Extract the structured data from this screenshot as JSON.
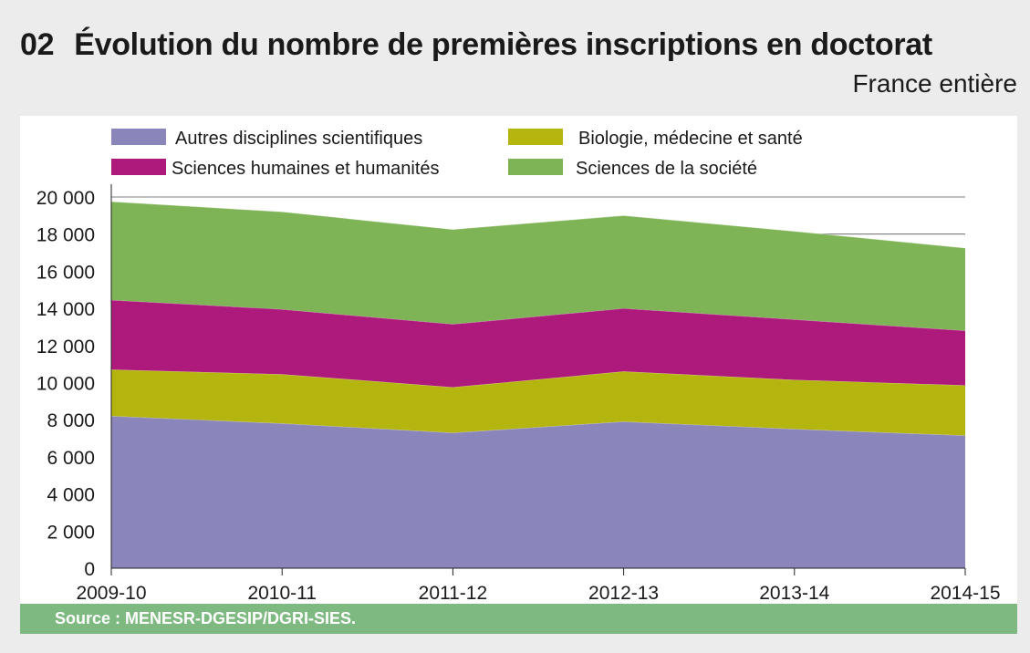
{
  "header": {
    "number": "02",
    "title": "Évolution du nombre de premières inscriptions en doctorat",
    "subtitle": "France entière"
  },
  "footer": {
    "source": "Source : MENESR-DGESIP/DGRI-SIES."
  },
  "chart_data": {
    "type": "area",
    "stacked": true,
    "categories": [
      "2009-10",
      "2010-11",
      "2011-12",
      "2012-13",
      "2013-14",
      "2014-15"
    ],
    "ylim": [
      0,
      20000
    ],
    "yticks": [
      0,
      2000,
      4000,
      6000,
      8000,
      10000,
      12000,
      14000,
      16000,
      18000,
      20000
    ],
    "ytick_labels": [
      "0",
      "2 000",
      "4 000",
      "6 000",
      "8 000",
      "10 000",
      "12 000",
      "14 000",
      "16 000",
      "18 000",
      "20 000"
    ],
    "legend": [
      {
        "label": "Autres disciplines scientifiques",
        "series": 0
      },
      {
        "label": "Biologie, médecine et santé",
        "series": 1
      },
      {
        "label": "Sciences humaines et humanités",
        "series": 2
      },
      {
        "label": "Sciences de la société",
        "series": 3
      }
    ],
    "series": [
      {
        "name": "Autres disciplines scientifiques",
        "color": "#8a86bb",
        "values": [
          8200,
          7800,
          7300,
          7900,
          7500,
          7150
        ]
      },
      {
        "name": "Biologie, médecine et santé",
        "color": "#b5b50f",
        "values": [
          2500,
          2650,
          2450,
          2700,
          2650,
          2700
        ]
      },
      {
        "name": "Sciences humaines et humanités",
        "color": "#ae1a7c",
        "values": [
          3750,
          3500,
          3400,
          3400,
          3250,
          2950
        ]
      },
      {
        "name": "Sciences de la société",
        "color": "#7eb356",
        "values": [
          5300,
          5250,
          5100,
          5000,
          4750,
          4450
        ]
      }
    ]
  }
}
